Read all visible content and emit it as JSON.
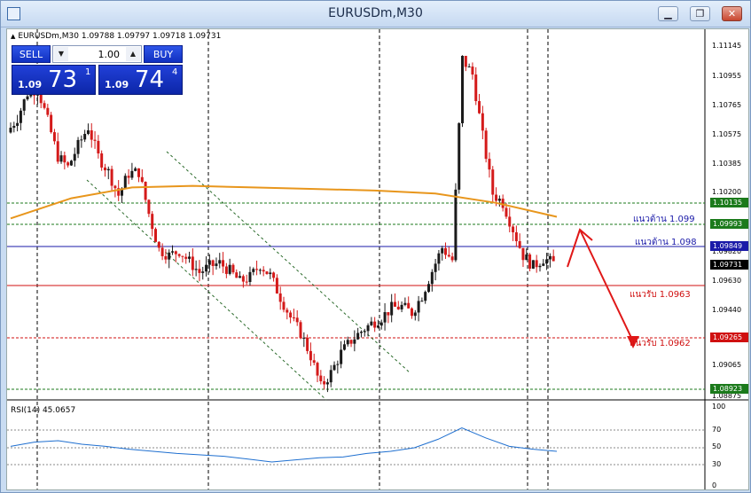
{
  "window": {
    "title": "EURUSDm,M30",
    "minimize": "▁",
    "restore": "❐",
    "close": "✕"
  },
  "symbol": {
    "arrow": "▲",
    "text": "EURUSDm,M30  1.09788 1.09797 1.09718 1.09731"
  },
  "trade": {
    "sell_label": "SELL",
    "buy_label": "BUY",
    "lot": "1.00",
    "sell_small": "1.09",
    "sell_big": "73",
    "sell_sup": "1",
    "buy_small": "1.09",
    "buy_big": "74",
    "buy_sup": "4"
  },
  "price_axis": [
    "1.11145",
    "1.10955",
    "1.10765",
    "1.10575",
    "1.10385",
    "1.10200",
    "1.10010",
    "1.09820",
    "1.09630",
    "1.09440",
    "1.09250",
    "1.09065",
    "1.08875"
  ],
  "price_tags": [
    {
      "value": "1.10135",
      "color": "#1b7a1b"
    },
    {
      "value": "1.09993",
      "color": "#1b7a1b"
    },
    {
      "value": "1.09849",
      "color": "#1a1aa8"
    },
    {
      "value": "1.09731",
      "color": "#000000"
    },
    {
      "value": "1.09265",
      "color": "#d01010"
    },
    {
      "value": "1.08923",
      "color": "#1b7a1b"
    }
  ],
  "annotations": {
    "res1": "แนวต้าน 1.099",
    "res2": "แนวต้าน 1.098",
    "sup1": "แนวรับ 1.0963",
    "sup2": "แนวรับ 1.0962"
  },
  "rsi": {
    "label": "RSI(14) 45.0657",
    "axis": [
      "100",
      "70",
      "50",
      "30",
      "0"
    ]
  },
  "colors": {
    "bull": "#1a1a1a",
    "bear": "#d41a1a",
    "ma": "#e8961c",
    "rsi": "#1e6fd0",
    "support": "#d01010",
    "resistance_blue": "#1a1aa8",
    "green_level": "#1b7a1b"
  },
  "chart_data": {
    "type": "candlestick",
    "symbol": "EURUSDm",
    "timeframe": "M30",
    "last_ohlc": {
      "open": 1.09788,
      "high": 1.09797,
      "low": 1.09718,
      "close": 1.09731
    },
    "ylim": [
      1.08875,
      1.11145
    ],
    "horizontal_levels": [
      1.10135,
      1.09993,
      1.09849,
      1.0963,
      1.09265,
      1.08923
    ],
    "close_path": [
      1.10575,
      1.1067,
      1.1083,
      1.1086,
      1.1065,
      1.1042,
      1.1035,
      1.1049,
      1.1061,
      1.1042,
      1.1032,
      1.1017,
      1.1031,
      1.1032,
      1.1005,
      1.0982,
      1.0978,
      1.0981,
      1.0974,
      1.0967,
      1.0971,
      1.0973,
      1.0968,
      1.0961,
      1.0964,
      1.0972,
      1.0965,
      1.0951,
      1.0938,
      1.0928,
      1.0913,
      1.0893,
      1.0902,
      1.0915,
      1.0923,
      1.0929,
      1.0934,
      1.0938,
      1.0944,
      1.0945,
      1.0941,
      1.0952,
      1.0968,
      1.0983,
      1.0975,
      1.1105,
      1.1095,
      1.1055,
      1.1018,
      1.1012,
      1.0995,
      1.0978,
      1.0971,
      1.0976,
      1.0973
    ],
    "ma_path": [
      1.1002,
      1.1015,
      1.1022,
      1.1023,
      1.1022,
      1.1021,
      1.102,
      1.1018,
      1.1012,
      1.1003
    ],
    "rsi_path": [
      52,
      58,
      60,
      55,
      52,
      48,
      45,
      42,
      40,
      38,
      34,
      30,
      33,
      36,
      37,
      42,
      45,
      50,
      62,
      78,
      64,
      52,
      48,
      45
    ],
    "rsi_levels": [
      70,
      50,
      30
    ]
  }
}
